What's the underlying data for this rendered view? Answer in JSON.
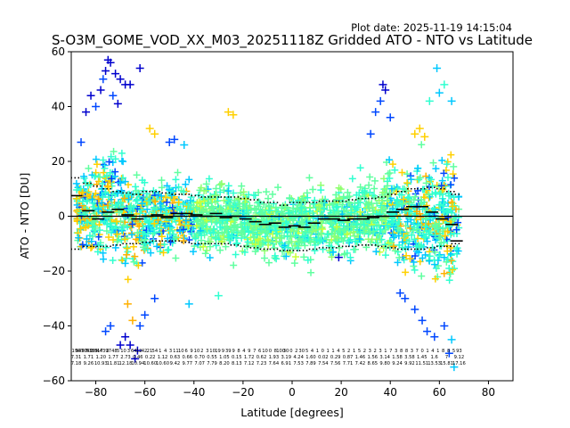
{
  "chart_data": {
    "type": "scatter",
    "plot_date": "Plot date: 2025-11-19 14:15:04",
    "title": "S-O3M_GOME_VOD_XX_M03_20251118Z Gridded ATO - NTO vs Latitude",
    "xlabel": "Latitude [degrees]",
    "ylabel": "ATO - NTO [DU]",
    "xlim": [
      -90,
      90
    ],
    "ylim": [
      -60,
      60
    ],
    "xticks": [
      -80,
      -60,
      -40,
      -20,
      0,
      20,
      40,
      60,
      80
    ],
    "yticks": [
      -60,
      -40,
      -20,
      0,
      20,
      40,
      60
    ],
    "zero_line": 0,
    "marker": "+",
    "point_colors": [
      "#0000cd",
      "#0047ff",
      "#00c8ff",
      "#30ffd0",
      "#60ffa0",
      "#90ff70",
      "#c8ff38",
      "#ffd000",
      "#ffb000"
    ],
    "scatter_envelope": [
      {
        "lat": -88,
        "lo": -18,
        "hi": 24
      },
      {
        "lat": -84,
        "lo": -24,
        "hi": 30
      },
      {
        "lat": -80,
        "lo": -30,
        "hi": 36
      },
      {
        "lat": -76,
        "lo": -34,
        "hi": 42
      },
      {
        "lat": -72,
        "lo": -36,
        "hi": 44
      },
      {
        "lat": -68,
        "lo": -38,
        "hi": 38
      },
      {
        "lat": -64,
        "lo": -32,
        "hi": 30
      },
      {
        "lat": -60,
        "lo": -28,
        "hi": 26
      },
      {
        "lat": -55,
        "lo": -25,
        "hi": 24
      },
      {
        "lat": -50,
        "lo": -24,
        "hi": 24
      },
      {
        "lat": -45,
        "lo": -25,
        "hi": 22
      },
      {
        "lat": -40,
        "lo": -24,
        "hi": 22
      },
      {
        "lat": -35,
        "lo": -23,
        "hi": 22
      },
      {
        "lat": -30,
        "lo": -22,
        "hi": 22
      },
      {
        "lat": -25,
        "lo": -22,
        "hi": 21
      },
      {
        "lat": -20,
        "lo": -23,
        "hi": 20
      },
      {
        "lat": -15,
        "lo": -23,
        "hi": 18
      },
      {
        "lat": -10,
        "lo": -24,
        "hi": 18
      },
      {
        "lat": -5,
        "lo": -25,
        "hi": 19
      },
      {
        "lat": 0,
        "lo": -26,
        "hi": 19
      },
      {
        "lat": 5,
        "lo": -26,
        "hi": 20
      },
      {
        "lat": 10,
        "lo": -26,
        "hi": 20
      },
      {
        "lat": 15,
        "lo": -25,
        "hi": 21
      },
      {
        "lat": 20,
        "lo": -24,
        "hi": 22
      },
      {
        "lat": 25,
        "lo": -24,
        "hi": 22
      },
      {
        "lat": 30,
        "lo": -24,
        "hi": 24
      },
      {
        "lat": 35,
        "lo": -26,
        "hi": 27
      },
      {
        "lat": 40,
        "lo": -28,
        "hi": 30
      },
      {
        "lat": 45,
        "lo": -32,
        "hi": 32
      },
      {
        "lat": 50,
        "lo": -36,
        "hi": 34
      },
      {
        "lat": 55,
        "lo": -38,
        "hi": 36
      },
      {
        "lat": 60,
        "lo": -40,
        "hi": 38
      },
      {
        "lat": 64,
        "lo": -44,
        "hi": 40
      },
      {
        "lat": 68,
        "lo": -48,
        "hi": 42
      }
    ],
    "outliers": [
      {
        "lat": -75,
        "y": 57,
        "c": "#0000cd"
      },
      {
        "lat": -74,
        "y": 56,
        "c": "#0000cd"
      },
      {
        "lat": -76,
        "y": 53,
        "c": "#0000cd"
      },
      {
        "lat": -77,
        "y": 50,
        "c": "#0047ff"
      },
      {
        "lat": -72,
        "y": 52,
        "c": "#0000cd"
      },
      {
        "lat": -70,
        "y": 50,
        "c": "#0000cd"
      },
      {
        "lat": -68,
        "y": 48,
        "c": "#0000cd"
      },
      {
        "lat": -66,
        "y": 48,
        "c": "#0000cd"
      },
      {
        "lat": -62,
        "y": 54,
        "c": "#0000cd"
      },
      {
        "lat": -78,
        "y": 46,
        "c": "#0000cd"
      },
      {
        "lat": -82,
        "y": 44,
        "c": "#0000cd"
      },
      {
        "lat": -84,
        "y": 38,
        "c": "#0000cd"
      },
      {
        "lat": -80,
        "y": 40,
        "c": "#0047ff"
      },
      {
        "lat": -73,
        "y": 44,
        "c": "#0047ff"
      },
      {
        "lat": -71,
        "y": 41,
        "c": "#0000cd"
      },
      {
        "lat": -86,
        "y": 27,
        "c": "#0047ff"
      },
      {
        "lat": -68,
        "y": -44,
        "c": "#0000cd"
      },
      {
        "lat": -66,
        "y": -47,
        "c": "#0000cd"
      },
      {
        "lat": -64,
        "y": -52,
        "c": "#0000cd"
      },
      {
        "lat": -63,
        "y": -49,
        "c": "#0000cd"
      },
      {
        "lat": -70,
        "y": -47,
        "c": "#0000cd"
      },
      {
        "lat": -74,
        "y": -40,
        "c": "#0047ff"
      },
      {
        "lat": -76,
        "y": -42,
        "c": "#0047ff"
      },
      {
        "lat": -62,
        "y": -40,
        "c": "#0047ff"
      },
      {
        "lat": -65,
        "y": -38,
        "c": "#ffb000"
      },
      {
        "lat": -67,
        "y": -32,
        "c": "#ffb000"
      },
      {
        "lat": -60,
        "y": -36,
        "c": "#0047ff"
      },
      {
        "lat": -56,
        "y": -30,
        "c": "#0047ff"
      },
      {
        "lat": -42,
        "y": -32,
        "c": "#00c8ff"
      },
      {
        "lat": -30,
        "y": -29,
        "c": "#30ffd0"
      },
      {
        "lat": 37,
        "y": 48,
        "c": "#0000cd"
      },
      {
        "lat": 38,
        "y": 46,
        "c": "#0000cd"
      },
      {
        "lat": 36,
        "y": 42,
        "c": "#0047ff"
      },
      {
        "lat": 40,
        "y": 36,
        "c": "#0047ff"
      },
      {
        "lat": 34,
        "y": 38,
        "c": "#0047ff"
      },
      {
        "lat": 32,
        "y": 30,
        "c": "#0047ff"
      },
      {
        "lat": 59,
        "y": 54,
        "c": "#00c8ff"
      },
      {
        "lat": 62,
        "y": 48,
        "c": "#30ffd0"
      },
      {
        "lat": 60,
        "y": 45,
        "c": "#00c8ff"
      },
      {
        "lat": 56,
        "y": 42,
        "c": "#30ffd0"
      },
      {
        "lat": 65,
        "y": 42,
        "c": "#00c8ff"
      },
      {
        "lat": 52,
        "y": 32,
        "c": "#ffd000"
      },
      {
        "lat": 50,
        "y": 30,
        "c": "#ffd000"
      },
      {
        "lat": 54,
        "y": 29,
        "c": "#ffd000"
      },
      {
        "lat": 44,
        "y": -28,
        "c": "#0047ff"
      },
      {
        "lat": 46,
        "y": -30,
        "c": "#0047ff"
      },
      {
        "lat": 50,
        "y": -34,
        "c": "#0047ff"
      },
      {
        "lat": 53,
        "y": -38,
        "c": "#0047ff"
      },
      {
        "lat": 55,
        "y": -42,
        "c": "#0047ff"
      },
      {
        "lat": 58,
        "y": -44,
        "c": "#0047ff"
      },
      {
        "lat": 62,
        "y": -40,
        "c": "#0047ff"
      },
      {
        "lat": 65,
        "y": -45,
        "c": "#00c8ff"
      },
      {
        "lat": 66,
        "y": -55,
        "c": "#00c8ff"
      },
      {
        "lat": 64,
        "y": -50,
        "c": "#0047ff"
      },
      {
        "lat": 19,
        "y": -15,
        "c": "#0000cd"
      },
      {
        "lat": -26,
        "y": 38,
        "c": "#ffd000"
      },
      {
        "lat": -24,
        "y": 37,
        "c": "#ffd000"
      },
      {
        "lat": -48,
        "y": 28,
        "c": "#0047ff"
      },
      {
        "lat": -50,
        "y": 27,
        "c": "#0047ff"
      },
      {
        "lat": -56,
        "y": 30,
        "c": "#ffd000"
      },
      {
        "lat": -58,
        "y": 32,
        "c": "#ffd000"
      },
      {
        "lat": -44,
        "y": 26,
        "c": "#00c8ff"
      }
    ],
    "mean_series": {
      "name": "mean",
      "lat": [
        -88,
        -83,
        -79,
        -75,
        -71,
        -67,
        -63,
        -59,
        -55,
        -51,
        -47,
        -43,
        -39,
        -35,
        -31,
        -27,
        -23,
        -19,
        -15,
        -11,
        -7,
        -3,
        1,
        5,
        9,
        13,
        17,
        21,
        25,
        29,
        33,
        37,
        41,
        45,
        49,
        53,
        57,
        61,
        65,
        67
      ],
      "values": [
        7.5,
        2,
        -1,
        1.5,
        2.5,
        0.5,
        -1,
        0,
        0.5,
        -0.5,
        1,
        1,
        0.5,
        0,
        1,
        -0.5,
        0,
        -1,
        -2,
        -3,
        -2.5,
        -4,
        -3.5,
        -4,
        -2.5,
        -1,
        -1,
        -1.5,
        -1,
        -1,
        -0.5,
        0,
        1.5,
        2.5,
        3.5,
        3.5,
        1.5,
        -1,
        -3,
        -9
      ]
    },
    "plus_std_series": {
      "name": "mean + std",
      "values": [
        14,
        12,
        11,
        10,
        9,
        8.5,
        8,
        9,
        9,
        8.5,
        8,
        8,
        7.5,
        7,
        7,
        7,
        7,
        6.5,
        6,
        5,
        5,
        4,
        5,
        5,
        5,
        5.5,
        5.5,
        5.5,
        6,
        6.5,
        6.5,
        7,
        8,
        9,
        10,
        10,
        10.5,
        10,
        9,
        8
      ]
    },
    "minus_std_series": {
      "name": "mean - std",
      "values": [
        -12,
        -11,
        -11,
        -11,
        -10.5,
        -10,
        -10,
        -9.5,
        -9,
        -9,
        -9,
        -9.5,
        -10,
        -10,
        -10,
        -10,
        -10.5,
        -11,
        -11.5,
        -12,
        -12,
        -12.5,
        -12.5,
        -12.5,
        -12,
        -11.5,
        -11.5,
        -11,
        -11,
        -10.5,
        -10.5,
        -11,
        -11.5,
        -12,
        -12,
        -12,
        -11.5,
        -11,
        -11,
        -10
      ]
    },
    "bin_stats_row1": [
      "196",
      "5497",
      "7040",
      "5335",
      "8917",
      "4439",
      "3",
      "748",
      "5",
      "10",
      "3",
      "64",
      "12",
      "42",
      "21",
      "54",
      "1",
      "4",
      "3",
      "11",
      "10",
      "6",
      "9",
      "10",
      "2",
      "3",
      "10",
      "19",
      "9",
      "39",
      "9",
      "8",
      "4",
      "9",
      "7",
      "6",
      "10",
      "0",
      "8",
      "100",
      "30",
      "0",
      "2",
      "30",
      "5",
      "4",
      "1",
      "0",
      "1",
      "1",
      "4",
      "5",
      "2",
      "1",
      "5",
      "2",
      "3",
      "2",
      "3",
      "1",
      "7",
      "3",
      "8",
      "8",
      "3",
      "7",
      "0",
      "1",
      "4",
      "1",
      "8",
      "8",
      "5",
      "93"
    ],
    "bin_stats_row2": [
      "7.31",
      "1.71",
      "1.20",
      "1.77",
      "2.73",
      "0.46",
      "0.22",
      "1.12",
      "0.63",
      "0.66",
      "0.70",
      "0.55",
      "1.05",
      "0.15",
      "1.72",
      "0.62",
      "1.93",
      "3.19",
      "4.24",
      "1.60",
      "0.02",
      "0.29",
      "0.87",
      "1.46",
      "1.56",
      "3.14",
      "1.58",
      "3.58",
      "1.45",
      "1.6",
      "7",
      "9.12"
    ],
    "bin_stats_row3": [
      "7.18",
      "9.26",
      "10.93",
      "11.81",
      "12.18",
      "10.94",
      "10.60",
      "10.60",
      "9.42",
      "9.77",
      "7.07",
      "7.79",
      "8.20",
      "8.13",
      "7.12",
      "7.23",
      "7.64",
      "6.91",
      "7.53",
      "7.89",
      "7.54",
      "7.56",
      "7.71",
      "7.42",
      "8.65",
      "9.80",
      "9.24",
      "9.92",
      "11.51",
      "13.53",
      "15.81",
      "17.16"
    ]
  }
}
